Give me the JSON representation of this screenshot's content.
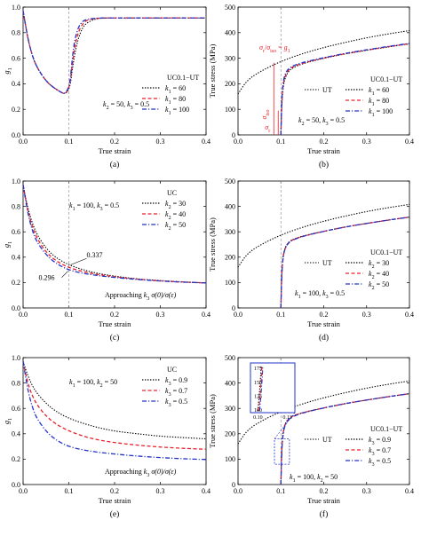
{
  "chart_data": [
    {
      "panel": "(a)",
      "type": "line",
      "xlabel": "True strain",
      "ylabel": "g1",
      "xlim": [
        0.0,
        0.4
      ],
      "ylim": [
        0.0,
        1.0
      ],
      "xticks": [
        "0.0",
        "0.1",
        "0.2",
        "0.3",
        "0.4"
      ],
      "yticks": [
        "0.0",
        "0.2",
        "0.4",
        "0.6",
        "0.8",
        "1.0"
      ],
      "legend_title": "UC0.1−UT",
      "annotation": "k2 = 50, k3 = 0.5",
      "vline_x": 0.1,
      "series": [
        {
          "name": "k1 = 60",
          "color": "#000000",
          "style": "dotted",
          "x": [
            0,
            0.01,
            0.02,
            0.03,
            0.05,
            0.07,
            0.1,
            0.11,
            0.12,
            0.13,
            0.14,
            0.16,
            0.18,
            0.2,
            0.3,
            0.4
          ],
          "y": [
            0.97,
            0.76,
            0.62,
            0.53,
            0.42,
            0.36,
            0.3,
            0.58,
            0.75,
            0.84,
            0.88,
            0.91,
            0.915,
            0.915,
            0.915,
            0.915
          ]
        },
        {
          "name": "k1 = 80",
          "color": "#e8202a",
          "style": "dashed",
          "x": [
            0,
            0.01,
            0.02,
            0.03,
            0.05,
            0.07,
            0.1,
            0.11,
            0.12,
            0.13,
            0.14,
            0.16,
            0.18,
            0.2,
            0.3,
            0.4
          ],
          "y": [
            0.97,
            0.76,
            0.62,
            0.53,
            0.42,
            0.36,
            0.3,
            0.64,
            0.8,
            0.87,
            0.9,
            0.912,
            0.915,
            0.915,
            0.915,
            0.915
          ]
        },
        {
          "name": "k1 = 100",
          "color": "#2433c8",
          "style": "dashdot",
          "x": [
            0,
            0.01,
            0.02,
            0.03,
            0.05,
            0.07,
            0.1,
            0.11,
            0.12,
            0.13,
            0.14,
            0.16,
            0.18,
            0.2,
            0.3,
            0.4
          ],
          "y": [
            0.97,
            0.76,
            0.62,
            0.53,
            0.42,
            0.36,
            0.3,
            0.7,
            0.84,
            0.89,
            0.905,
            0.914,
            0.915,
            0.915,
            0.915,
            0.915
          ]
        }
      ]
    },
    {
      "panel": "(b)",
      "type": "line",
      "xlabel": "True strain",
      "ylabel": "True stress (MPa)",
      "xlim": [
        0.0,
        0.4
      ],
      "ylim": [
        0,
        500
      ],
      "xticks": [
        "0.0",
        "0.1",
        "0.2",
        "0.3",
        "0.4"
      ],
      "yticks": [
        "0",
        "100",
        "200",
        "300",
        "400",
        "500"
      ],
      "legend_title": "UC0.1−UT",
      "annotations": [
        "σr/σiso = g1",
        "σiso",
        "σr",
        "k2 = 50, k3 = 0.5"
      ],
      "vline_x": 0.1,
      "series": [
        {
          "name": "UT",
          "color": "#000000",
          "style": "dotted",
          "x": [
            0,
            0.02,
            0.05,
            0.1,
            0.15,
            0.2,
            0.25,
            0.3,
            0.35,
            0.4
          ],
          "y": [
            160,
            212,
            247,
            288,
            318,
            342,
            362,
            380,
            395,
            408
          ]
        },
        {
          "name": "k1 = 60",
          "color": "#000000",
          "style": "dotted",
          "x": [
            0.1,
            0.102,
            0.105,
            0.11,
            0.12,
            0.14,
            0.16,
            0.2,
            0.25,
            0.3,
            0.35,
            0.4
          ],
          "y": [
            0,
            120,
            185,
            225,
            255,
            272,
            283,
            300,
            317,
            331,
            344,
            356
          ]
        },
        {
          "name": "k1 = 80",
          "color": "#e8202a",
          "style": "dashed",
          "x": [
            0.1,
            0.102,
            0.105,
            0.11,
            0.12,
            0.14,
            0.16,
            0.2,
            0.25,
            0.3,
            0.35,
            0.4
          ],
          "y": [
            0,
            130,
            195,
            232,
            260,
            275,
            285,
            301,
            318,
            332,
            345,
            357
          ]
        },
        {
          "name": "k1 = 100",
          "color": "#2433c8",
          "style": "dashdot",
          "x": [
            0.1,
            0.102,
            0.105,
            0.11,
            0.12,
            0.14,
            0.16,
            0.2,
            0.25,
            0.3,
            0.35,
            0.4
          ],
          "y": [
            0,
            140,
            205,
            240,
            264,
            278,
            287,
            302,
            319,
            333,
            346,
            358
          ]
        }
      ]
    },
    {
      "panel": "(c)",
      "type": "line",
      "xlabel": "True strain",
      "ylabel": "g1",
      "xlim": [
        0.0,
        0.4
      ],
      "ylim": [
        0.0,
        1.0
      ],
      "xticks": [
        "0.0",
        "0.1",
        "0.2",
        "0.3",
        "0.4"
      ],
      "yticks": [
        "0.0",
        "0.2",
        "0.4",
        "0.6",
        "0.8",
        "1.0"
      ],
      "legend_title": "UC",
      "annotations": [
        "k1 = 100, k3 = 0.5",
        "0.337",
        "0.296",
        "Approaching k3 σ(0)/σ(ε)"
      ],
      "vline_x": 0.1,
      "series": [
        {
          "name": "k2 = 30",
          "color": "#000000",
          "style": "dotted",
          "x": [
            0,
            0.01,
            0.02,
            0.03,
            0.05,
            0.07,
            0.1,
            0.15,
            0.2,
            0.25,
            0.3,
            0.35,
            0.4
          ],
          "y": [
            0.97,
            0.79,
            0.67,
            0.58,
            0.47,
            0.4,
            0.337,
            0.28,
            0.25,
            0.228,
            0.215,
            0.205,
            0.197
          ]
        },
        {
          "name": "k2 = 40",
          "color": "#e8202a",
          "style": "dashed",
          "x": [
            0,
            0.01,
            0.02,
            0.03,
            0.05,
            0.07,
            0.1,
            0.15,
            0.2,
            0.25,
            0.3,
            0.35,
            0.4
          ],
          "y": [
            0.97,
            0.77,
            0.64,
            0.55,
            0.44,
            0.375,
            0.315,
            0.27,
            0.245,
            0.226,
            0.213,
            0.204,
            0.197
          ]
        },
        {
          "name": "k2 = 50",
          "color": "#2433c8",
          "style": "dashdot",
          "x": [
            0,
            0.01,
            0.02,
            0.03,
            0.05,
            0.07,
            0.1,
            0.15,
            0.2,
            0.25,
            0.3,
            0.35,
            0.4
          ],
          "y": [
            0.97,
            0.75,
            0.61,
            0.52,
            0.42,
            0.355,
            0.296,
            0.26,
            0.24,
            0.224,
            0.212,
            0.203,
            0.197
          ]
        }
      ]
    },
    {
      "panel": "(d)",
      "type": "line",
      "xlabel": "True strain",
      "ylabel": "True stress (MPa)",
      "xlim": [
        0.0,
        0.4
      ],
      "ylim": [
        0,
        500
      ],
      "xticks": [
        "0.0",
        "0.1",
        "0.2",
        "0.3",
        "0.4"
      ],
      "yticks": [
        "0",
        "100",
        "200",
        "300",
        "400",
        "500"
      ],
      "legend_title": "UC0.1−UT",
      "annotation": "k1 = 100, k3 = 0.5",
      "vline_x": 0.1,
      "series": [
        {
          "name": "UT",
          "color": "#000000",
          "style": "dotted",
          "x": [
            0,
            0.02,
            0.05,
            0.1,
            0.15,
            0.2,
            0.25,
            0.3,
            0.35,
            0.4
          ],
          "y": [
            160,
            212,
            247,
            288,
            318,
            342,
            362,
            380,
            395,
            408
          ]
        },
        {
          "name": "k2 = 30",
          "color": "#000000",
          "style": "dotted",
          "x": [
            0.1,
            0.102,
            0.105,
            0.11,
            0.12,
            0.14,
            0.16,
            0.2,
            0.25,
            0.3,
            0.35,
            0.4
          ],
          "y": [
            0,
            140,
            205,
            240,
            264,
            278,
            287,
            302,
            319,
            333,
            346,
            358
          ]
        },
        {
          "name": "k2 = 40",
          "color": "#e8202a",
          "style": "dashed",
          "x": [
            0.1,
            0.102,
            0.105,
            0.11,
            0.12,
            0.14,
            0.16,
            0.2,
            0.25,
            0.3,
            0.35,
            0.4
          ],
          "y": [
            0,
            138,
            203,
            238,
            263,
            277,
            286,
            302,
            319,
            333,
            346,
            358
          ]
        },
        {
          "name": "k2 = 50",
          "color": "#2433c8",
          "style": "dashdot",
          "x": [
            0.1,
            0.102,
            0.105,
            0.11,
            0.12,
            0.14,
            0.16,
            0.2,
            0.25,
            0.3,
            0.35,
            0.4
          ],
          "y": [
            0,
            136,
            201,
            236,
            262,
            276,
            286,
            302,
            319,
            333,
            346,
            358
          ]
        }
      ]
    },
    {
      "panel": "(e)",
      "type": "line",
      "xlabel": "True strain",
      "ylabel": "g1",
      "xlim": [
        0.0,
        0.4
      ],
      "ylim": [
        0.0,
        1.0
      ],
      "xticks": [
        "0.0",
        "0.1",
        "0.2",
        "0.3",
        "0.4"
      ],
      "yticks": [
        "0.0",
        "0.2",
        "0.4",
        "0.6",
        "0.8",
        "1.0"
      ],
      "legend_title": "UC",
      "annotations": [
        "k1 = 100, k2 = 50",
        "Approaching k3 σ(0)/σ(ε)"
      ],
      "series": [
        {
          "name": "k3 = 0.9",
          "color": "#000000",
          "style": "dotted",
          "x": [
            0,
            0.01,
            0.02,
            0.03,
            0.05,
            0.07,
            0.1,
            0.15,
            0.2,
            0.25,
            0.3,
            0.35,
            0.4
          ],
          "y": [
            0.97,
            0.86,
            0.78,
            0.72,
            0.64,
            0.58,
            0.52,
            0.46,
            0.42,
            0.4,
            0.38,
            0.37,
            0.36
          ]
        },
        {
          "name": "k3 = 0.7",
          "color": "#e8202a",
          "style": "dashed",
          "x": [
            0,
            0.01,
            0.02,
            0.03,
            0.05,
            0.07,
            0.1,
            0.15,
            0.2,
            0.25,
            0.3,
            0.35,
            0.4
          ],
          "y": [
            0.97,
            0.8,
            0.7,
            0.63,
            0.54,
            0.48,
            0.42,
            0.36,
            0.33,
            0.31,
            0.295,
            0.285,
            0.278
          ]
        },
        {
          "name": "k3 = 0.5",
          "color": "#2433c8",
          "style": "dashdot",
          "x": [
            0,
            0.01,
            0.02,
            0.03,
            0.05,
            0.07,
            0.1,
            0.15,
            0.2,
            0.25,
            0.3,
            0.35,
            0.4
          ],
          "y": [
            0.97,
            0.75,
            0.61,
            0.52,
            0.42,
            0.355,
            0.296,
            0.26,
            0.24,
            0.224,
            0.212,
            0.203,
            0.197
          ]
        }
      ]
    },
    {
      "panel": "(f)",
      "type": "line",
      "xlabel": "True strain",
      "ylabel": "True stress (MPa)",
      "xlim": [
        0.0,
        0.4
      ],
      "ylim": [
        0,
        500
      ],
      "xticks": [
        "0.0",
        "0.1",
        "0.2",
        "0.3",
        "0.4"
      ],
      "yticks": [
        "0",
        "100",
        "200",
        "300",
        "400",
        "500"
      ],
      "legend_title": "UC0.1−UT",
      "annotation": "k1 = 100, k2 = 50",
      "vline_x": 0.1,
      "inset": {
        "xticks": [
          "0.10",
          "0.12"
        ],
        "yticks": [
          "175",
          "150",
          "125",
          "100"
        ],
        "xlim": [
          0.095,
          0.125
        ],
        "ylim": [
          95,
          185
        ]
      },
      "series": [
        {
          "name": "UT",
          "color": "#000000",
          "style": "dotted",
          "x": [
            0,
            0.02,
            0.05,
            0.1,
            0.15,
            0.2,
            0.25,
            0.3,
            0.35,
            0.4
          ],
          "y": [
            160,
            212,
            247,
            288,
            318,
            342,
            362,
            380,
            395,
            408
          ]
        },
        {
          "name": "k3 = 0.9",
          "color": "#000000",
          "style": "dotted",
          "x": [
            0.1,
            0.102,
            0.105,
            0.11,
            0.12,
            0.14,
            0.16,
            0.2,
            0.25,
            0.3,
            0.35,
            0.4
          ],
          "y": [
            0,
            145,
            208,
            242,
            265,
            278,
            287,
            302,
            319,
            333,
            346,
            358
          ]
        },
        {
          "name": "k3 = 0.7",
          "color": "#e8202a",
          "style": "dashed",
          "x": [
            0.1,
            0.102,
            0.105,
            0.11,
            0.12,
            0.14,
            0.16,
            0.2,
            0.25,
            0.3,
            0.35,
            0.4
          ],
          "y": [
            0,
            140,
            205,
            240,
            264,
            278,
            287,
            302,
            319,
            333,
            346,
            358
          ]
        },
        {
          "name": "k3 = 0.5",
          "color": "#2433c8",
          "style": "dashdot",
          "x": [
            0.1,
            0.102,
            0.105,
            0.11,
            0.12,
            0.14,
            0.16,
            0.2,
            0.25,
            0.3,
            0.35,
            0.4
          ],
          "y": [
            0,
            136,
            201,
            236,
            262,
            276,
            286,
            302,
            319,
            333,
            346,
            358
          ]
        }
      ]
    }
  ]
}
